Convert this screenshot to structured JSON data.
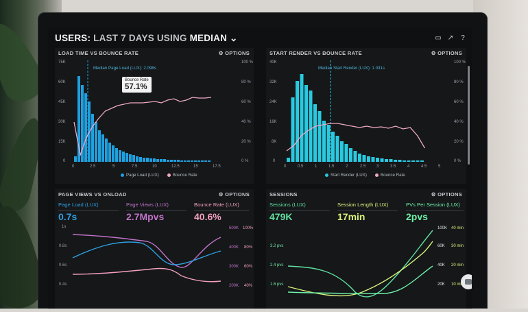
{
  "header": {
    "title_prefix": "USERS:",
    "title_range": "LAST 7 DAYS",
    "title_mid": "USING",
    "title_metric": "MEDIAN",
    "chevron": "chevron-down-icon",
    "icons": [
      "monitor-icon",
      "trend-icon",
      "help-icon"
    ]
  },
  "panel_load": {
    "title": "LOAD TIME VS BOUNCE RATE",
    "options": "⚙ OPTIONS",
    "median_label": "Median Page Load (LUX): 2.098s",
    "tooltip_label": "Bounce Rate",
    "tooltip_value": "57.1%",
    "y_left": [
      "75K",
      "60K",
      "45K",
      "30K",
      "15K",
      "0"
    ],
    "y_right": [
      "100 %",
      "80 %",
      "60 %",
      "40 %",
      "20 %",
      "0 %"
    ],
    "x_ticks": [
      "0",
      "2.5",
      "5",
      "7.5",
      "10",
      "12.5",
      "15",
      "17.5"
    ],
    "legend_bar": "Page Load (LUX)",
    "legend_line": "Bounce Rate",
    "color_bar": "#1fa0df",
    "color_line": "#f1a9c6"
  },
  "panel_render": {
    "title": "START RENDER VS BOUNCE RATE",
    "options": "⚙ OPTIONS",
    "median_label": "Median Start Render (LUX): 1.031s",
    "y_left": [
      "40K",
      "32K",
      "24K",
      "16K",
      "8K",
      "0"
    ],
    "y_right": [
      "100 %",
      "80 %",
      "60 %",
      "40 %",
      "20 %",
      "0 %"
    ],
    "x_ticks": [
      "0",
      "0.5",
      "1",
      "1.5",
      "2",
      "2.5",
      "3",
      "3.5",
      "4",
      "4.5",
      "5"
    ],
    "legend_bar": "Start Render (LUX)",
    "legend_line": "Bounce Rate",
    "color_bar": "#29c9e0",
    "color_line": "#f1a9c6"
  },
  "panel_views": {
    "title": "PAGE VIEWS VS ONLOAD",
    "options": "⚙ OPTIONS",
    "kpis": [
      {
        "label": "Page Load (LUX)",
        "value": "0.7s",
        "color": "#2e9fe0"
      },
      {
        "label": "Page Views (LUX)",
        "value": "2.7Mpvs",
        "color": "#c173c8"
      },
      {
        "label": "Bounce Rate (LUX)",
        "value": "40.6%",
        "color": "#f39fc0"
      }
    ],
    "y_left": [
      "1s",
      "0.8s",
      "0.6s",
      "0.4s"
    ],
    "y_mid": [
      "500K",
      "400K",
      "300K",
      "200K"
    ],
    "y_right": [
      "100%",
      "80%",
      "60%",
      "40%"
    ]
  },
  "panel_sessions": {
    "title": "SESSIONS",
    "options": "⚙ OPTIONS",
    "kpis": [
      {
        "label": "Sessions (LUX)",
        "value": "479K",
        "color": "#5fe0a0"
      },
      {
        "label": "Session Length (LUX)",
        "value": "17min",
        "color": "#d8f27a"
      },
      {
        "label": "PVs Per Session (LUX)",
        "value": "2pvs",
        "color": "#6ff0a8"
      }
    ],
    "y_left": [
      "3.2 pvs",
      "2.4 pvs",
      "1.6 pvs"
    ],
    "y_right_a": [
      "100K",
      "60K",
      "40K",
      "20K"
    ],
    "y_right_b": [
      "40 min",
      "30 min",
      "20 min",
      "10 min"
    ]
  },
  "chat": {
    "badge": "1"
  }
}
